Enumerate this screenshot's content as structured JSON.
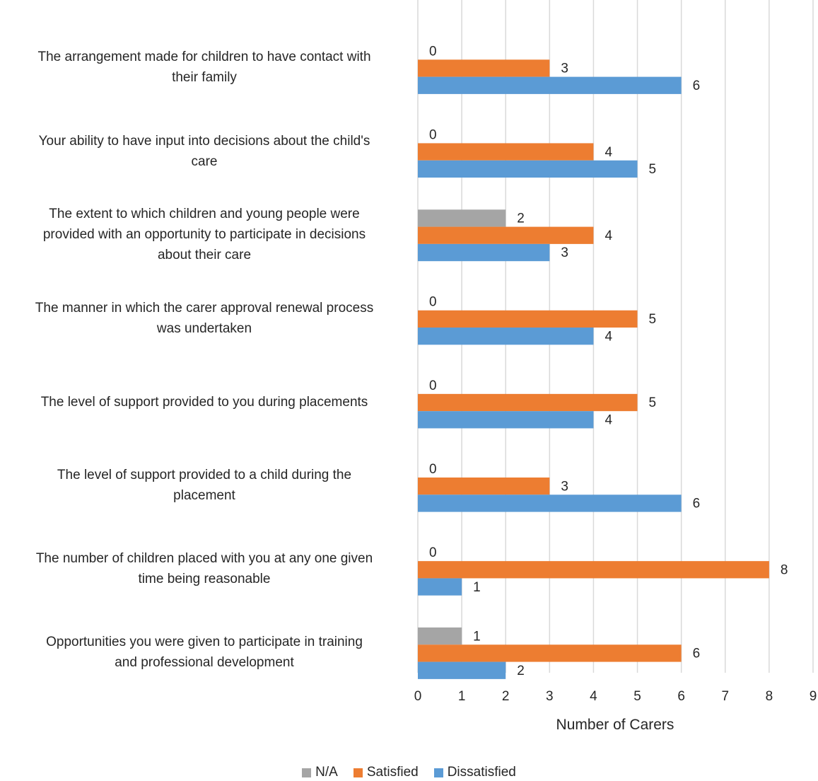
{
  "chart_data": {
    "type": "bar",
    "orientation": "horizontal",
    "title": "",
    "xlabel": "Number of Carers",
    "ylabel": "",
    "xlim": [
      0,
      9
    ],
    "x_ticks": [
      0,
      1,
      2,
      3,
      4,
      5,
      6,
      7,
      8,
      9
    ],
    "grid": "vertical",
    "legend": "bottom",
    "categories": [
      [
        "The arrangement made for children to have contact with",
        "their family"
      ],
      [
        "Your ability to have input into decisions about the child's",
        "care"
      ],
      [
        "The extent to which children and young people were",
        "provided with an opportunity to participate in decisions",
        "about their care"
      ],
      [
        "The manner in which the carer approval renewal process",
        "was undertaken"
      ],
      [
        "The level of support provided to you during placements"
      ],
      [
        "The level of support provided to a child during the",
        "placement"
      ],
      [
        "The number of children placed with you at any one given",
        "time being reasonable"
      ],
      [
        "Opportunities you were given to participate in training",
        "and professional development"
      ]
    ],
    "series": [
      {
        "name": "N/A",
        "color": "#a5a5a5",
        "values": [
          0,
          0,
          2,
          0,
          0,
          0,
          0,
          1
        ]
      },
      {
        "name": "Satisfied",
        "color": "#ed7d31",
        "values": [
          3,
          4,
          4,
          5,
          5,
          3,
          8,
          6
        ]
      },
      {
        "name": "Dissatisfied",
        "color": "#5b9bd5",
        "values": [
          6,
          5,
          3,
          4,
          4,
          6,
          1,
          2
        ]
      }
    ]
  }
}
